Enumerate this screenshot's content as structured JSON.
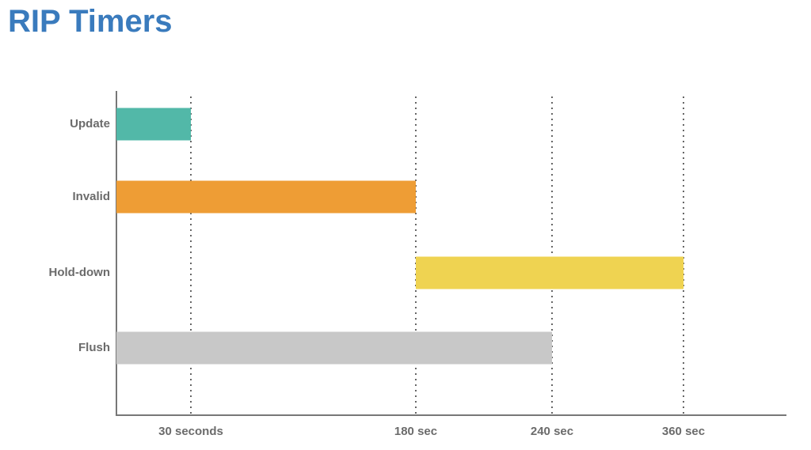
{
  "chart_data": {
    "type": "floating-bar",
    "title": "RIP Timers",
    "categories": [
      "Update",
      "Invalid",
      "Hold-down",
      "Flush"
    ],
    "starts": [
      0,
      0,
      180,
      0
    ],
    "values": [
      30,
      180,
      360,
      240
    ],
    "colors": [
      "#52b8a8",
      "#ee9d35",
      "#efd351",
      "#c8c8c8"
    ],
    "xlim": [
      0,
      450
    ],
    "xticks": [
      {
        "value": 30,
        "label": "30 seconds"
      },
      {
        "value": 180,
        "label": "180 sec"
      },
      {
        "value": 240,
        "label": "240 sec"
      },
      {
        "value": 360,
        "label": "360 sec"
      }
    ],
    "grid": true
  }
}
